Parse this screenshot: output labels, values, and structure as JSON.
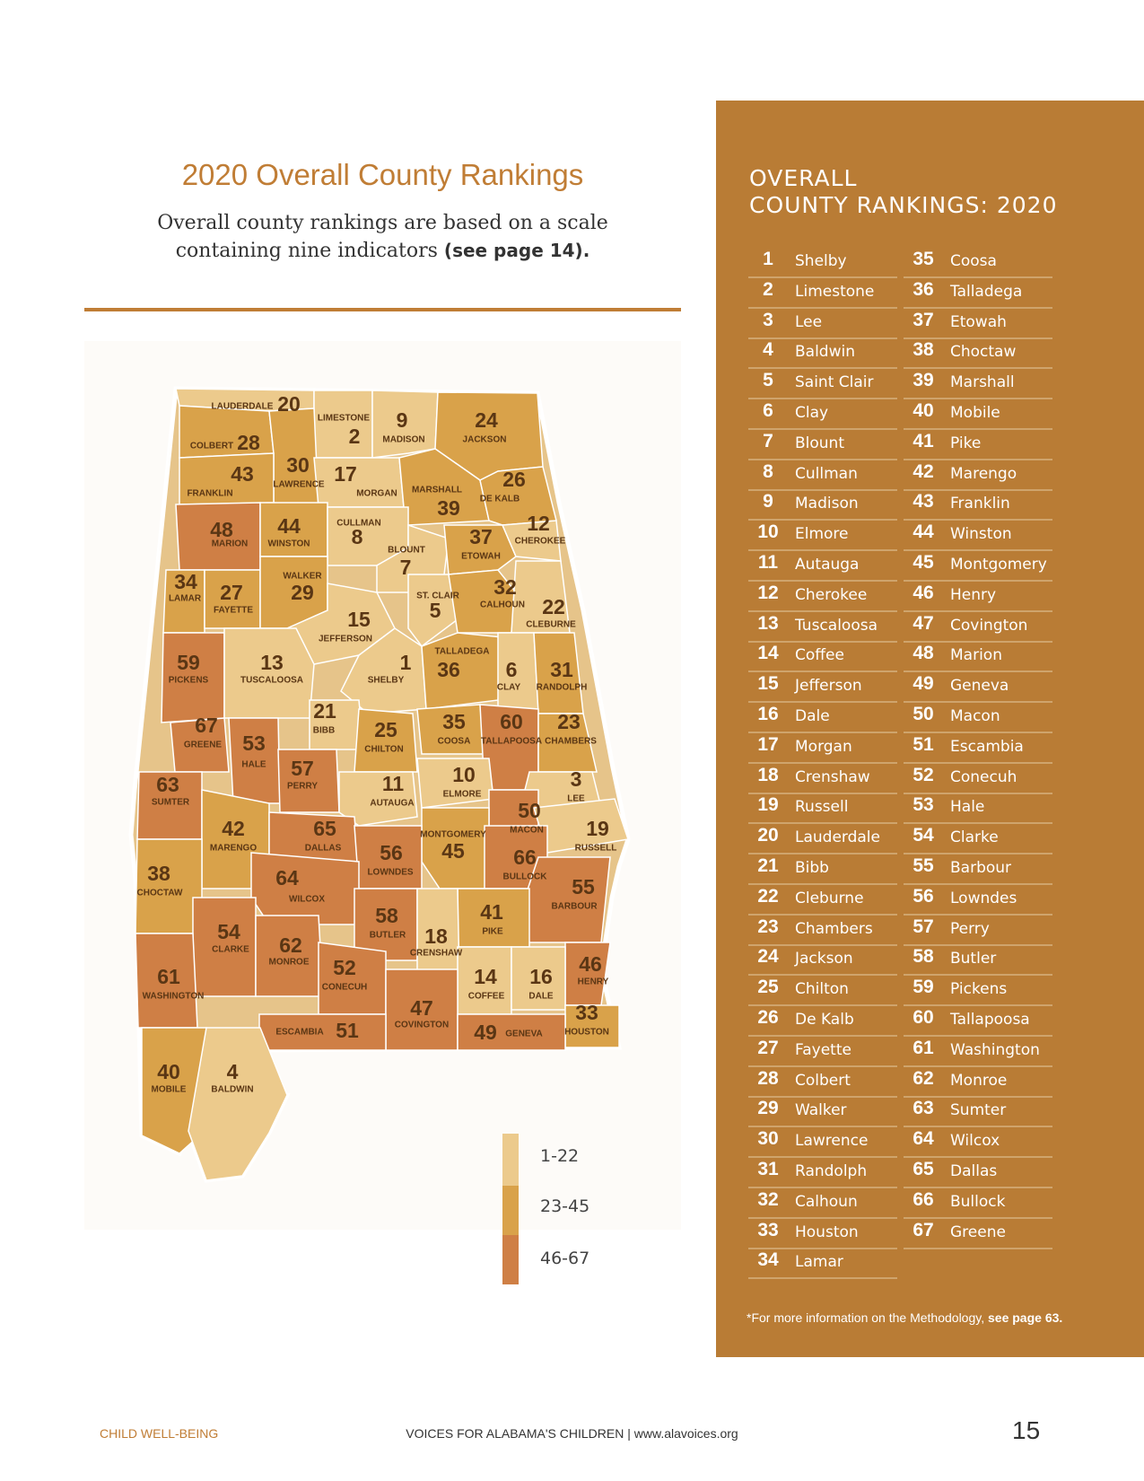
{
  "map": {
    "title": "2020 Overall County Rankings",
    "subtitle_line1": "Overall county rankings are based on a scale",
    "subtitle_line2": "containing nine indicators ",
    "subtitle_bold": "(see page 14).",
    "bins": [
      {
        "label": "1-22",
        "min": 1,
        "max": 22,
        "color": "#ecca8c"
      },
      {
        "label": "23-45",
        "min": 23,
        "max": 45,
        "color": "#d9a24a"
      },
      {
        "label": "46-67",
        "min": 46,
        "max": 67,
        "color": "#cf7f45"
      }
    ],
    "counties": [
      {
        "name": "LAUDERDALE",
        "rank": 20
      },
      {
        "name": "LIMESTONE",
        "rank": 2
      },
      {
        "name": "MADISON",
        "rank": 9
      },
      {
        "name": "JACKSON",
        "rank": 24
      },
      {
        "name": "COLBERT",
        "rank": 28
      },
      {
        "name": "LAWRENCE",
        "rank": 30
      },
      {
        "name": "MORGAN",
        "rank": 17
      },
      {
        "name": "FRANKLIN",
        "rank": 43
      },
      {
        "name": "MARSHALL",
        "rank": 39
      },
      {
        "name": "DE KALB",
        "rank": 26
      },
      {
        "name": "MARION",
        "rank": 48
      },
      {
        "name": "WINSTON",
        "rank": 44
      },
      {
        "name": "CULLMAN",
        "rank": 8
      },
      {
        "name": "BLOUNT",
        "rank": 7
      },
      {
        "name": "ETOWAH",
        "rank": 37
      },
      {
        "name": "CHEROKEE",
        "rank": 12
      },
      {
        "name": "LAMAR",
        "rank": 34
      },
      {
        "name": "FAYETTE",
        "rank": 27
      },
      {
        "name": "WALKER",
        "rank": 29
      },
      {
        "name": "ST. CLAIR",
        "rank": 5
      },
      {
        "name": "CALHOUN",
        "rank": 32
      },
      {
        "name": "CLEBURNE",
        "rank": 22
      },
      {
        "name": "JEFFERSON",
        "rank": 15
      },
      {
        "name": "PICKENS",
        "rank": 59
      },
      {
        "name": "TUSCALOOSA",
        "rank": 13
      },
      {
        "name": "SHELBY",
        "rank": 1
      },
      {
        "name": "TALLADEGA",
        "rank": 36
      },
      {
        "name": "CLAY",
        "rank": 6
      },
      {
        "name": "RANDOLPH",
        "rank": 31
      },
      {
        "name": "BIBB",
        "rank": 21
      },
      {
        "name": "GREENE",
        "rank": 67
      },
      {
        "name": "HALE",
        "rank": 53
      },
      {
        "name": "CHILTON",
        "rank": 25
      },
      {
        "name": "COOSA",
        "rank": 35
      },
      {
        "name": "TALLAPOOSA",
        "rank": 60
      },
      {
        "name": "CHAMBERS",
        "rank": 23
      },
      {
        "name": "PERRY",
        "rank": 57
      },
      {
        "name": "SUMTER",
        "rank": 63
      },
      {
        "name": "AUTAUGA",
        "rank": 11
      },
      {
        "name": "ELMORE",
        "rank": 10
      },
      {
        "name": "LEE",
        "rank": 3
      },
      {
        "name": "MACON",
        "rank": 50
      },
      {
        "name": "MARENGO",
        "rank": 42
      },
      {
        "name": "DALLAS",
        "rank": 65
      },
      {
        "name": "MONTGOMERY",
        "rank": 45
      },
      {
        "name": "RUSSELL",
        "rank": 19
      },
      {
        "name": "LOWNDES",
        "rank": 56
      },
      {
        "name": "BULLOCK",
        "rank": 66
      },
      {
        "name": "CHOCTAW",
        "rank": 38
      },
      {
        "name": "WILCOX",
        "rank": 64
      },
      {
        "name": "BARBOUR",
        "rank": 55
      },
      {
        "name": "PIKE",
        "rank": 41
      },
      {
        "name": "BUTLER",
        "rank": 58
      },
      {
        "name": "CLARKE",
        "rank": 54
      },
      {
        "name": "CRENSHAW",
        "rank": 18
      },
      {
        "name": "MONROE",
        "rank": 62
      },
      {
        "name": "CONECUH",
        "rank": 52
      },
      {
        "name": "WASHINGTON",
        "rank": 61
      },
      {
        "name": "HENRY",
        "rank": 46
      },
      {
        "name": "COFFEE",
        "rank": 14
      },
      {
        "name": "DALE",
        "rank": 16
      },
      {
        "name": "COVINGTON",
        "rank": 47
      },
      {
        "name": "HOUSTON",
        "rank": 33
      },
      {
        "name": "ESCAMBIA",
        "rank": 51
      },
      {
        "name": "GENEVA",
        "rank": 49
      },
      {
        "name": "MOBILE",
        "rank": 40
      },
      {
        "name": "BALDWIN",
        "rank": 4
      }
    ]
  },
  "panel": {
    "title_line1": "OVERALL",
    "title_line2": "COUNTY RANKINGS: 2020",
    "note": "*For more information on the Methodology, ",
    "note_bold": "see page 63.",
    "rankings": [
      {
        "rank": 1,
        "county": "Shelby"
      },
      {
        "rank": 2,
        "county": "Limestone"
      },
      {
        "rank": 3,
        "county": "Lee"
      },
      {
        "rank": 4,
        "county": "Baldwin"
      },
      {
        "rank": 5,
        "county": "Saint Clair"
      },
      {
        "rank": 6,
        "county": "Clay"
      },
      {
        "rank": 7,
        "county": "Blount"
      },
      {
        "rank": 8,
        "county": "Cullman"
      },
      {
        "rank": 9,
        "county": "Madison"
      },
      {
        "rank": 10,
        "county": "Elmore"
      },
      {
        "rank": 11,
        "county": "Autauga"
      },
      {
        "rank": 12,
        "county": "Cherokee"
      },
      {
        "rank": 13,
        "county": "Tuscaloosa"
      },
      {
        "rank": 14,
        "county": "Coffee"
      },
      {
        "rank": 15,
        "county": "Jefferson"
      },
      {
        "rank": 16,
        "county": "Dale"
      },
      {
        "rank": 17,
        "county": "Morgan"
      },
      {
        "rank": 18,
        "county": "Crenshaw"
      },
      {
        "rank": 19,
        "county": "Russell"
      },
      {
        "rank": 20,
        "county": "Lauderdale"
      },
      {
        "rank": 21,
        "county": "Bibb"
      },
      {
        "rank": 22,
        "county": "Cleburne"
      },
      {
        "rank": 23,
        "county": "Chambers"
      },
      {
        "rank": 24,
        "county": "Jackson"
      },
      {
        "rank": 25,
        "county": "Chilton"
      },
      {
        "rank": 26,
        "county": "De Kalb"
      },
      {
        "rank": 27,
        "county": "Fayette"
      },
      {
        "rank": 28,
        "county": "Colbert"
      },
      {
        "rank": 29,
        "county": "Walker"
      },
      {
        "rank": 30,
        "county": "Lawrence"
      },
      {
        "rank": 31,
        "county": "Randolph"
      },
      {
        "rank": 32,
        "county": "Calhoun"
      },
      {
        "rank": 33,
        "county": "Houston"
      },
      {
        "rank": 34,
        "county": "Lamar"
      },
      {
        "rank": 35,
        "county": "Coosa"
      },
      {
        "rank": 36,
        "county": "Talladega"
      },
      {
        "rank": 37,
        "county": "Etowah"
      },
      {
        "rank": 38,
        "county": "Choctaw"
      },
      {
        "rank": 39,
        "county": "Marshall"
      },
      {
        "rank": 40,
        "county": "Mobile"
      },
      {
        "rank": 41,
        "county": "Pike"
      },
      {
        "rank": 42,
        "county": "Marengo"
      },
      {
        "rank": 43,
        "county": "Franklin"
      },
      {
        "rank": 44,
        "county": "Winston"
      },
      {
        "rank": 45,
        "county": "Montgomery"
      },
      {
        "rank": 46,
        "county": "Henry"
      },
      {
        "rank": 47,
        "county": "Covington"
      },
      {
        "rank": 48,
        "county": "Marion"
      },
      {
        "rank": 49,
        "county": "Geneva"
      },
      {
        "rank": 50,
        "county": "Macon"
      },
      {
        "rank": 51,
        "county": "Escambia"
      },
      {
        "rank": 52,
        "county": "Conecuh"
      },
      {
        "rank": 53,
        "county": "Hale"
      },
      {
        "rank": 54,
        "county": "Clarke"
      },
      {
        "rank": 55,
        "county": "Barbour"
      },
      {
        "rank": 56,
        "county": "Lowndes"
      },
      {
        "rank": 57,
        "county": "Perry"
      },
      {
        "rank": 58,
        "county": "Butler"
      },
      {
        "rank": 59,
        "county": "Pickens"
      },
      {
        "rank": 60,
        "county": "Tallapoosa"
      },
      {
        "rank": 61,
        "county": "Washington"
      },
      {
        "rank": 62,
        "county": "Monroe"
      },
      {
        "rank": 63,
        "county": "Sumter"
      },
      {
        "rank": 64,
        "county": "Wilcox"
      },
      {
        "rank": 65,
        "county": "Dallas"
      },
      {
        "rank": 66,
        "county": "Bullock"
      },
      {
        "rank": 67,
        "county": "Greene"
      }
    ]
  },
  "footer": {
    "left": "CHILD WELL-BEING",
    "center": "VOICES FOR ALABAMA'S CHILDREN | www.alavoices.org",
    "page": "15"
  }
}
